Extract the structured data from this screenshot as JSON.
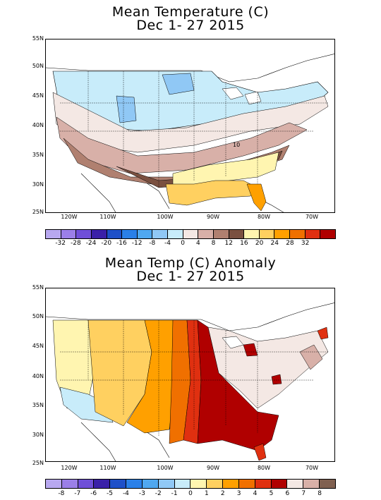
{
  "panels": [
    {
      "title_line1": "Mean Temperature (C)",
      "title_line2": "Dec 1- 27 2015",
      "lat_labels": [
        "55N",
        "50N",
        "45N",
        "40N",
        "35N",
        "30N",
        "25N"
      ],
      "lon_labels": [
        "120W",
        "110W",
        "100W",
        "90W",
        "80W",
        "70W"
      ],
      "annotation": "10",
      "colorbar": {
        "labels": [
          "-32",
          "-28",
          "-24",
          "-20",
          "-16",
          "-12",
          "-8",
          "-4",
          "0",
          "4",
          "8",
          "12",
          "16",
          "20",
          "24",
          "28",
          "32"
        ],
        "colors": [
          "#b8a8f0",
          "#9b7fe8",
          "#6f4fd8",
          "#3a20a8",
          "#1e50c8",
          "#2a80e8",
          "#50a8f0",
          "#90c8f5",
          "#c8ecfa",
          "#f4e8e4",
          "#d8b0a8",
          "#b08070",
          "#7a5040",
          "#fff5b0",
          "#ffd060",
          "#ffa000",
          "#f07000",
          "#e03010",
          "#b00000"
        ]
      }
    },
    {
      "title_line1": "Mean Temp (C) Anomaly",
      "title_line2": "Dec 1- 27 2015",
      "lat_labels": [
        "55N",
        "50N",
        "45N",
        "40N",
        "35N",
        "30N",
        "25N"
      ],
      "lon_labels": [
        "120W",
        "110W",
        "100W",
        "90W",
        "80W",
        "70W"
      ],
      "annotation": "",
      "colorbar": {
        "labels": [
          "-8",
          "-7",
          "-6",
          "-5",
          "-4",
          "-3",
          "-2",
          "-1",
          "0",
          "1",
          "2",
          "3",
          "4",
          "5",
          "6",
          "7",
          "8"
        ],
        "colors": [
          "#b8a8f0",
          "#9b7fe8",
          "#6f4fd8",
          "#3a20a8",
          "#1e50c8",
          "#2a80e8",
          "#50a8f0",
          "#90c8f5",
          "#c8ecfa",
          "#fff5b0",
          "#ffd060",
          "#ffa000",
          "#f07000",
          "#e03010",
          "#b00000",
          "#f4e8e4",
          "#d8b0a8",
          "#806050"
        ]
      }
    }
  ]
}
